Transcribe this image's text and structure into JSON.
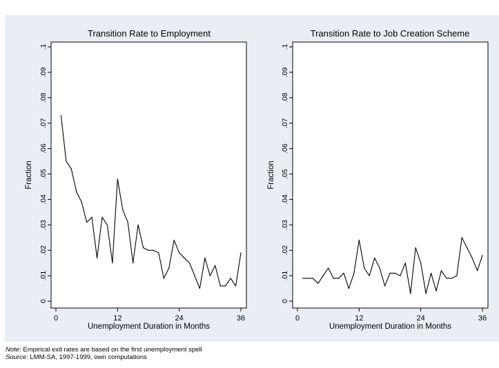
{
  "chart_data": [
    {
      "type": "line",
      "title": "Transition Rate to Employment",
      "xlabel": "Unemployment Duration in Months",
      "ylabel": "Fraction",
      "xlim": [
        0,
        36
      ],
      "ylim": [
        0,
        0.1
      ],
      "xticks": [
        "0",
        "12",
        "24",
        "36"
      ],
      "yticks": [
        "0",
        ".01",
        ".02",
        ".03",
        ".04",
        ".05",
        ".06",
        ".07",
        ".08",
        ".09",
        ".1"
      ],
      "grid": false,
      "line_color": "#000000",
      "x": [
        1,
        2,
        3,
        4,
        5,
        6,
        7,
        8,
        9,
        10,
        11,
        12,
        13,
        14,
        15,
        16,
        17,
        18,
        19,
        20,
        21,
        22,
        23,
        24,
        25,
        26,
        27,
        28,
        29,
        30,
        31,
        32,
        33,
        34,
        35,
        36
      ],
      "values": [
        0.073,
        0.055,
        0.052,
        0.043,
        0.039,
        0.031,
        0.033,
        0.017,
        0.033,
        0.03,
        0.015,
        0.048,
        0.036,
        0.031,
        0.015,
        0.03,
        0.021,
        0.02,
        0.02,
        0.019,
        0.009,
        0.013,
        0.024,
        0.019,
        0.017,
        0.015,
        0.01,
        0.005,
        0.017,
        0.01,
        0.014,
        0.006,
        0.006,
        0.009,
        0.006,
        0.019
      ]
    },
    {
      "type": "line",
      "title": "Transition Rate to Job Creation Scheme",
      "xlabel": "Unemployment Duration in Months",
      "ylabel": "Fraction",
      "xlim": [
        0,
        36
      ],
      "ylim": [
        0,
        0.1
      ],
      "xticks": [
        "0",
        "12",
        "24",
        "36"
      ],
      "yticks": [
        "0",
        ".01",
        ".02",
        ".03",
        ".04",
        ".05",
        ".06",
        ".07",
        ".08",
        ".09",
        ".1"
      ],
      "grid": false,
      "line_color": "#000000",
      "x": [
        1,
        2,
        3,
        4,
        5,
        6,
        7,
        8,
        9,
        10,
        11,
        12,
        13,
        14,
        15,
        16,
        17,
        18,
        19,
        20,
        21,
        22,
        23,
        24,
        25,
        26,
        27,
        28,
        29,
        30,
        31,
        32,
        33,
        34,
        35,
        36
      ],
      "values": [
        0.009,
        0.009,
        0.009,
        0.007,
        0.01,
        0.013,
        0.009,
        0.009,
        0.011,
        0.005,
        0.011,
        0.024,
        0.013,
        0.01,
        0.017,
        0.013,
        0.006,
        0.011,
        0.011,
        0.01,
        0.015,
        0.003,
        0.021,
        0.015,
        0.003,
        0.011,
        0.004,
        0.012,
        0.009,
        0.009,
        0.01,
        0.025,
        0.021,
        0.017,
        0.012,
        0.018
      ]
    }
  ],
  "footnote": {
    "line1_label": "Note",
    "line1_text": ": Empirical exit rates are based on the first unemployment spell",
    "line2_label": "Source",
    "line2_text": ": LMM-SA, 1997-1999, own computations"
  },
  "colors": {
    "outer_background": "#e8eef3",
    "plot_background": "#ffffff",
    "frame": "#000000"
  }
}
